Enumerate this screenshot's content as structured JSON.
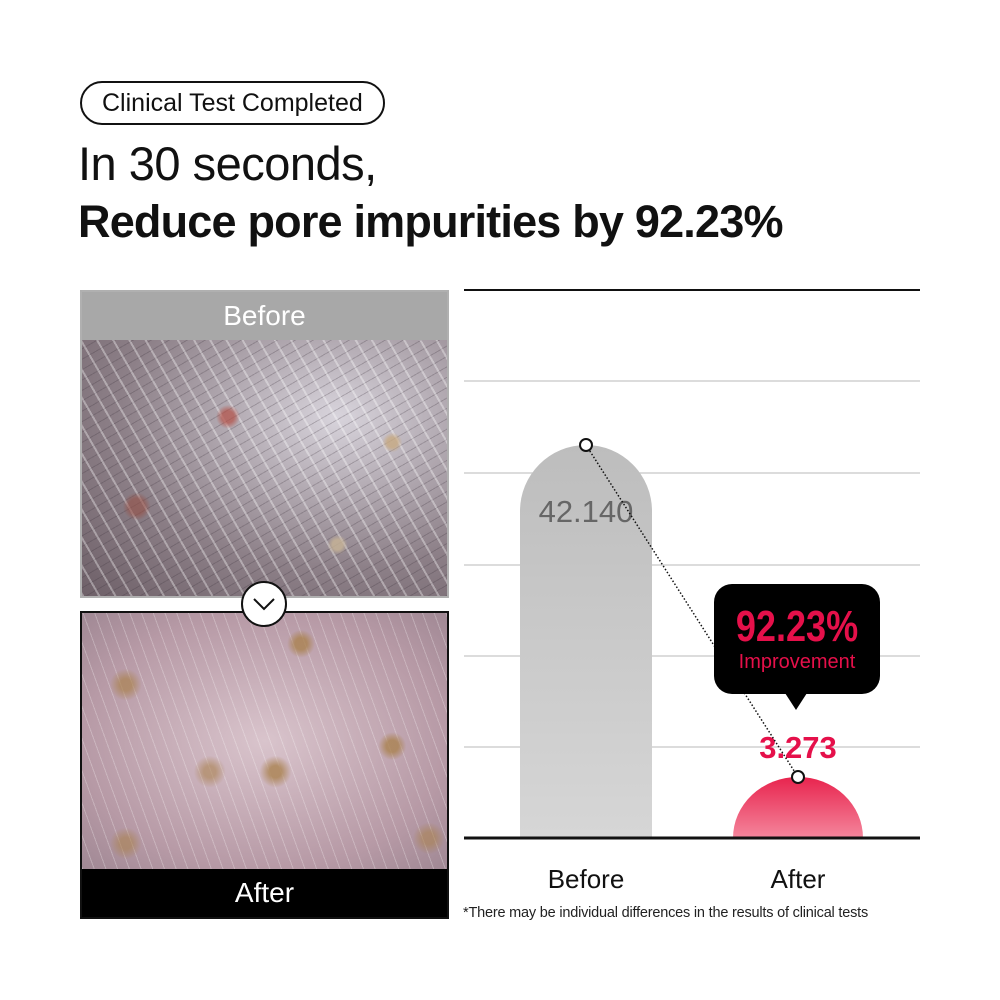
{
  "header": {
    "badge": "Clinical Test Completed",
    "line1": "In 30 seconds,",
    "line2": "Reduce pore impurities by 92.23%"
  },
  "photos": {
    "before_label": "Before",
    "after_label": "After",
    "divider_icon": "chevron-down-icon"
  },
  "chart_data": {
    "type": "bar",
    "categories": [
      "Before",
      "After"
    ],
    "values": [
      42.14,
      3.273
    ],
    "value_labels": [
      "42.140",
      "3.273"
    ],
    "grid": true,
    "colors": {
      "before": "#c4c4c4",
      "after": "#e8244e",
      "before_label": "#666666",
      "after_label": "#e5104a"
    },
    "callout": {
      "value": "92.23%",
      "label": "Improvement",
      "background": "#000000",
      "color": "#e5104a"
    }
  },
  "footnote": "*There may be individual differences in the results of clinical tests"
}
